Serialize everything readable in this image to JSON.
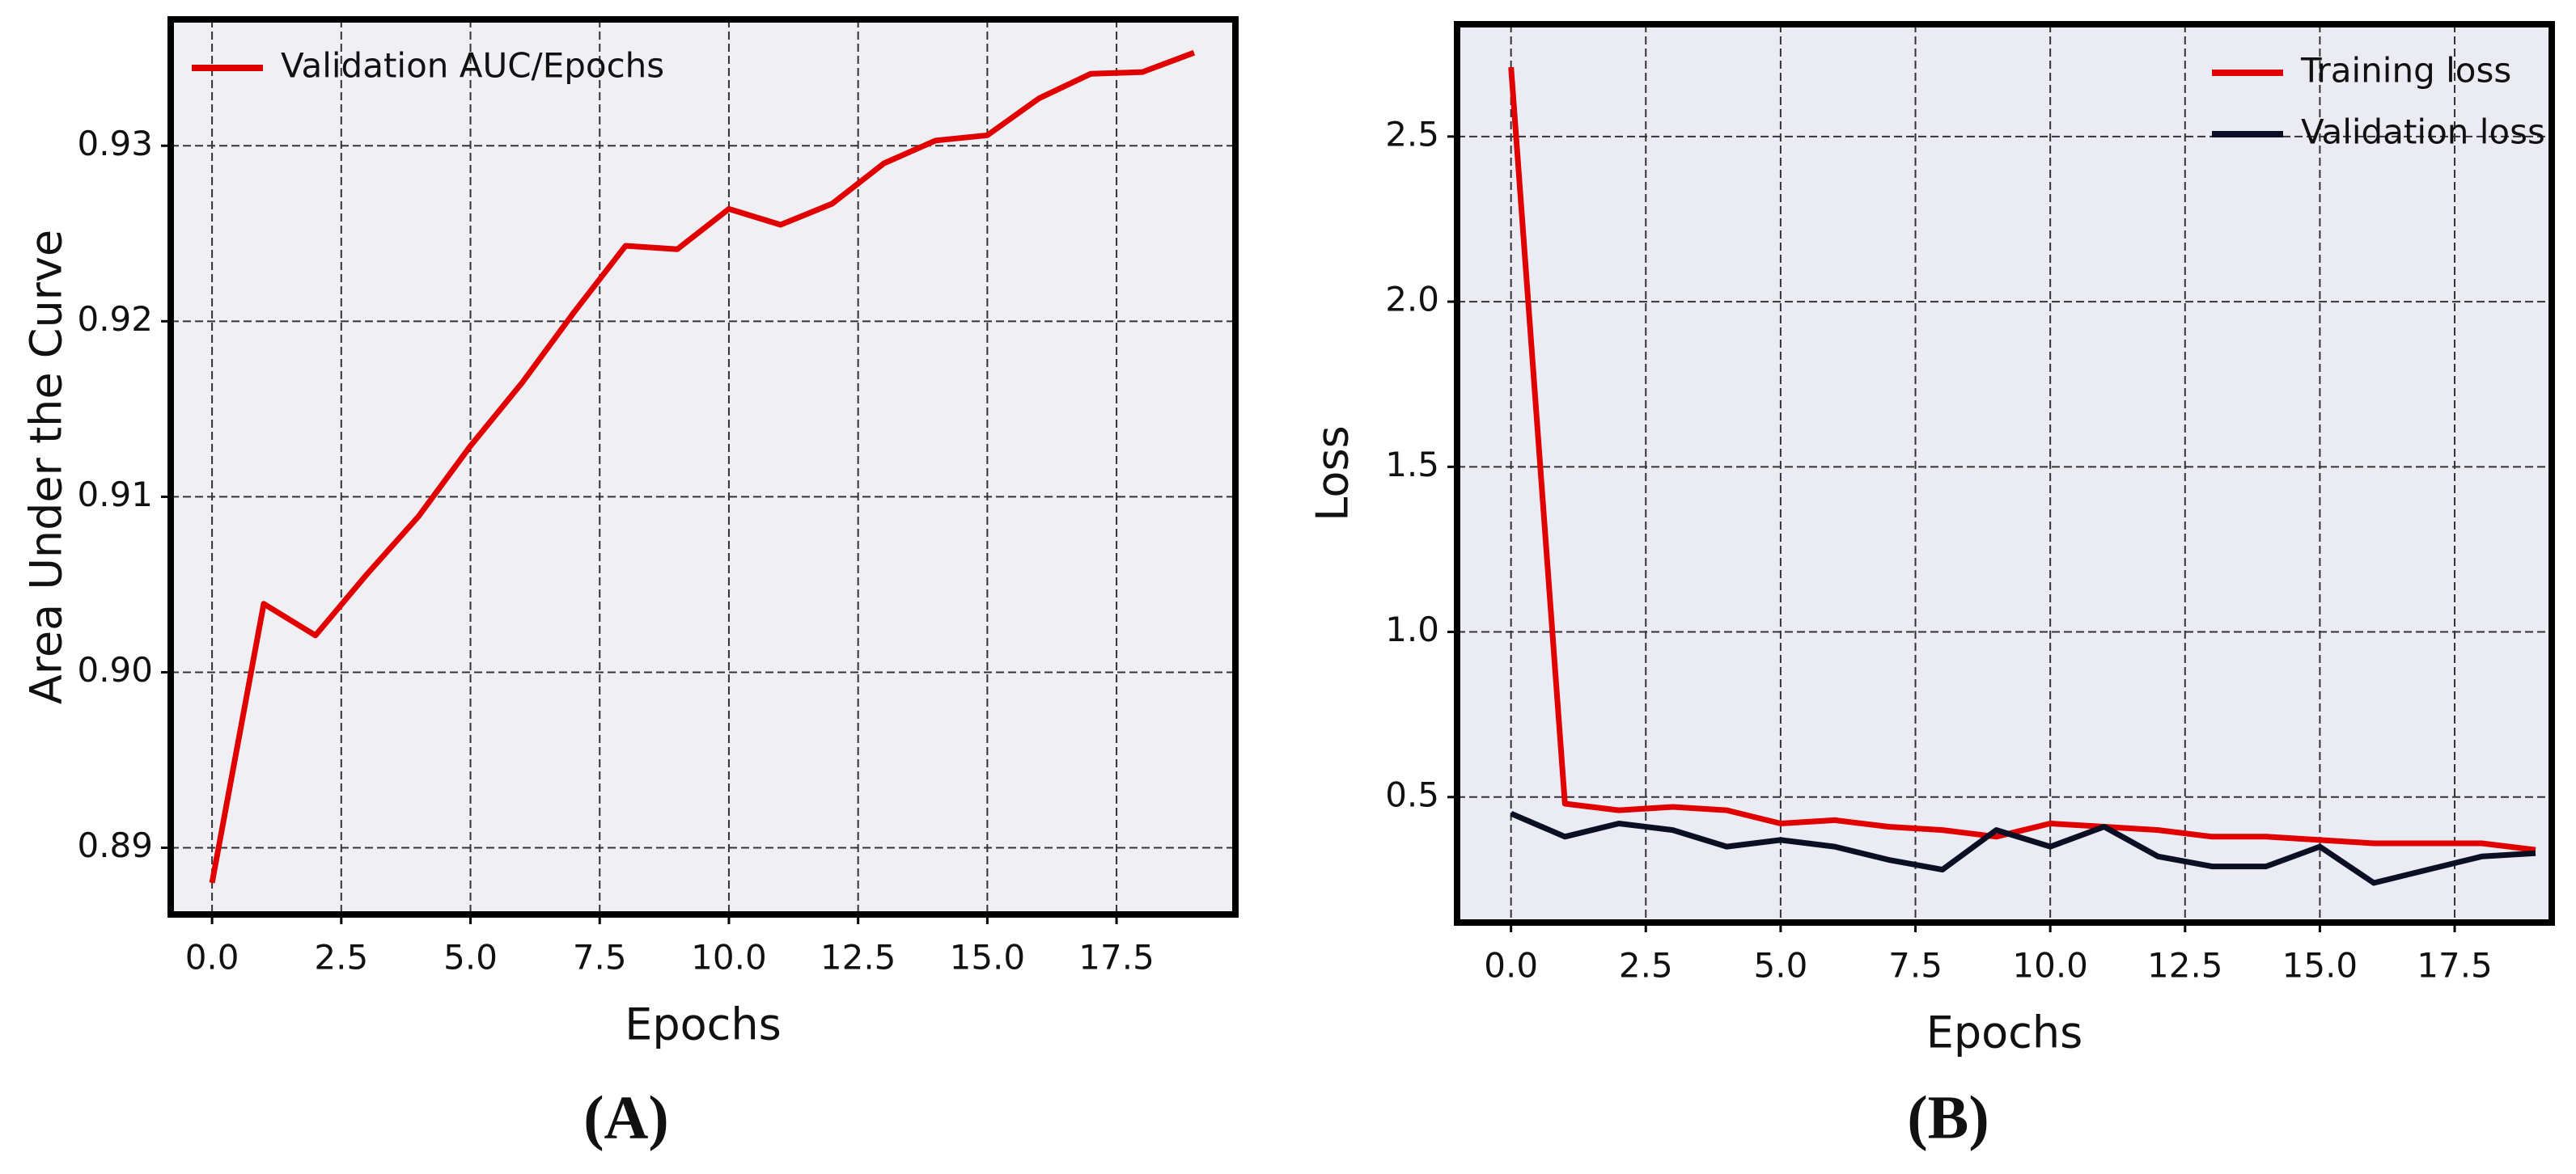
{
  "chart_data": [
    {
      "type": "line",
      "panel_label": "(A)",
      "xlabel": "Epochs",
      "ylabel": "Area Under the Curve",
      "x": [
        0,
        1,
        2,
        3,
        4,
        5,
        6,
        7,
        8,
        9,
        10,
        11,
        12,
        13,
        14,
        15,
        16,
        17,
        18,
        19
      ],
      "series": [
        {
          "name": "Validation AUC/Epochs",
          "color": "#e00000",
          "values": [
            0.888,
            0.9039,
            0.9021,
            0.9056,
            0.9089,
            0.9129,
            0.9165,
            0.9205,
            0.9243,
            0.9241,
            0.9264,
            0.9255,
            0.9267,
            0.929,
            0.9303,
            0.9306,
            0.9327,
            0.9341,
            0.9342,
            0.9353
          ]
        }
      ],
      "xlim": [
        -0.8,
        19.8
      ],
      "ylim": [
        0.8862,
        0.9372
      ],
      "xticks": [
        {
          "value": 0,
          "label": "0.0"
        },
        2.5,
        {
          "value": 5,
          "label": "5.0"
        },
        7.5,
        {
          "value": 10,
          "label": "10.0"
        },
        12.5,
        {
          "value": 15,
          "label": "15.0"
        },
        17.5
      ],
      "yticks": [
        0.89,
        {
          "value": 0.9,
          "label": "0.90"
        },
        0.91,
        0.92,
        0.93
      ],
      "grid": true,
      "legend": "upper-left",
      "background": "#f0eff4"
    },
    {
      "type": "line",
      "panel_label": "(B)",
      "xlabel": "Epochs",
      "ylabel": "Loss",
      "x": [
        0,
        1,
        2,
        3,
        4,
        5,
        6,
        7,
        8,
        9,
        10,
        11,
        12,
        13,
        14,
        15,
        16,
        17,
        18,
        19
      ],
      "series": [
        {
          "name": "Training loss",
          "color": "#e00000",
          "values": [
            2.71,
            0.48,
            0.46,
            0.47,
            0.46,
            0.42,
            0.43,
            0.41,
            0.4,
            0.38,
            0.42,
            0.41,
            0.4,
            0.38,
            0.38,
            0.37,
            0.36,
            0.36,
            0.36,
            0.34
          ]
        },
        {
          "name": "Validation loss",
          "color": "#0a0f24",
          "values": [
            0.45,
            0.38,
            0.42,
            0.4,
            0.35,
            0.37,
            0.35,
            0.31,
            0.28,
            0.4,
            0.35,
            0.41,
            0.32,
            0.29,
            0.29,
            0.35,
            0.24,
            0.28,
            0.32,
            0.33
          ]
        }
      ],
      "xlim": [
        -1,
        19.3
      ],
      "ylim": [
        0.12,
        2.84
      ],
      "xticks": [
        {
          "value": 0,
          "label": "0.0"
        },
        2.5,
        {
          "value": 5,
          "label": "5.0"
        },
        7.5,
        {
          "value": 10,
          "label": "10.0"
        },
        12.5,
        {
          "value": 15,
          "label": "15.0"
        },
        17.5
      ],
      "yticks": [
        0.5,
        {
          "value": 1,
          "label": "1.0"
        },
        1.5,
        {
          "value": 2,
          "label": "2.0"
        },
        2.5
      ],
      "grid": true,
      "legend": "upper-right",
      "background": "#ebebf3"
    }
  ]
}
